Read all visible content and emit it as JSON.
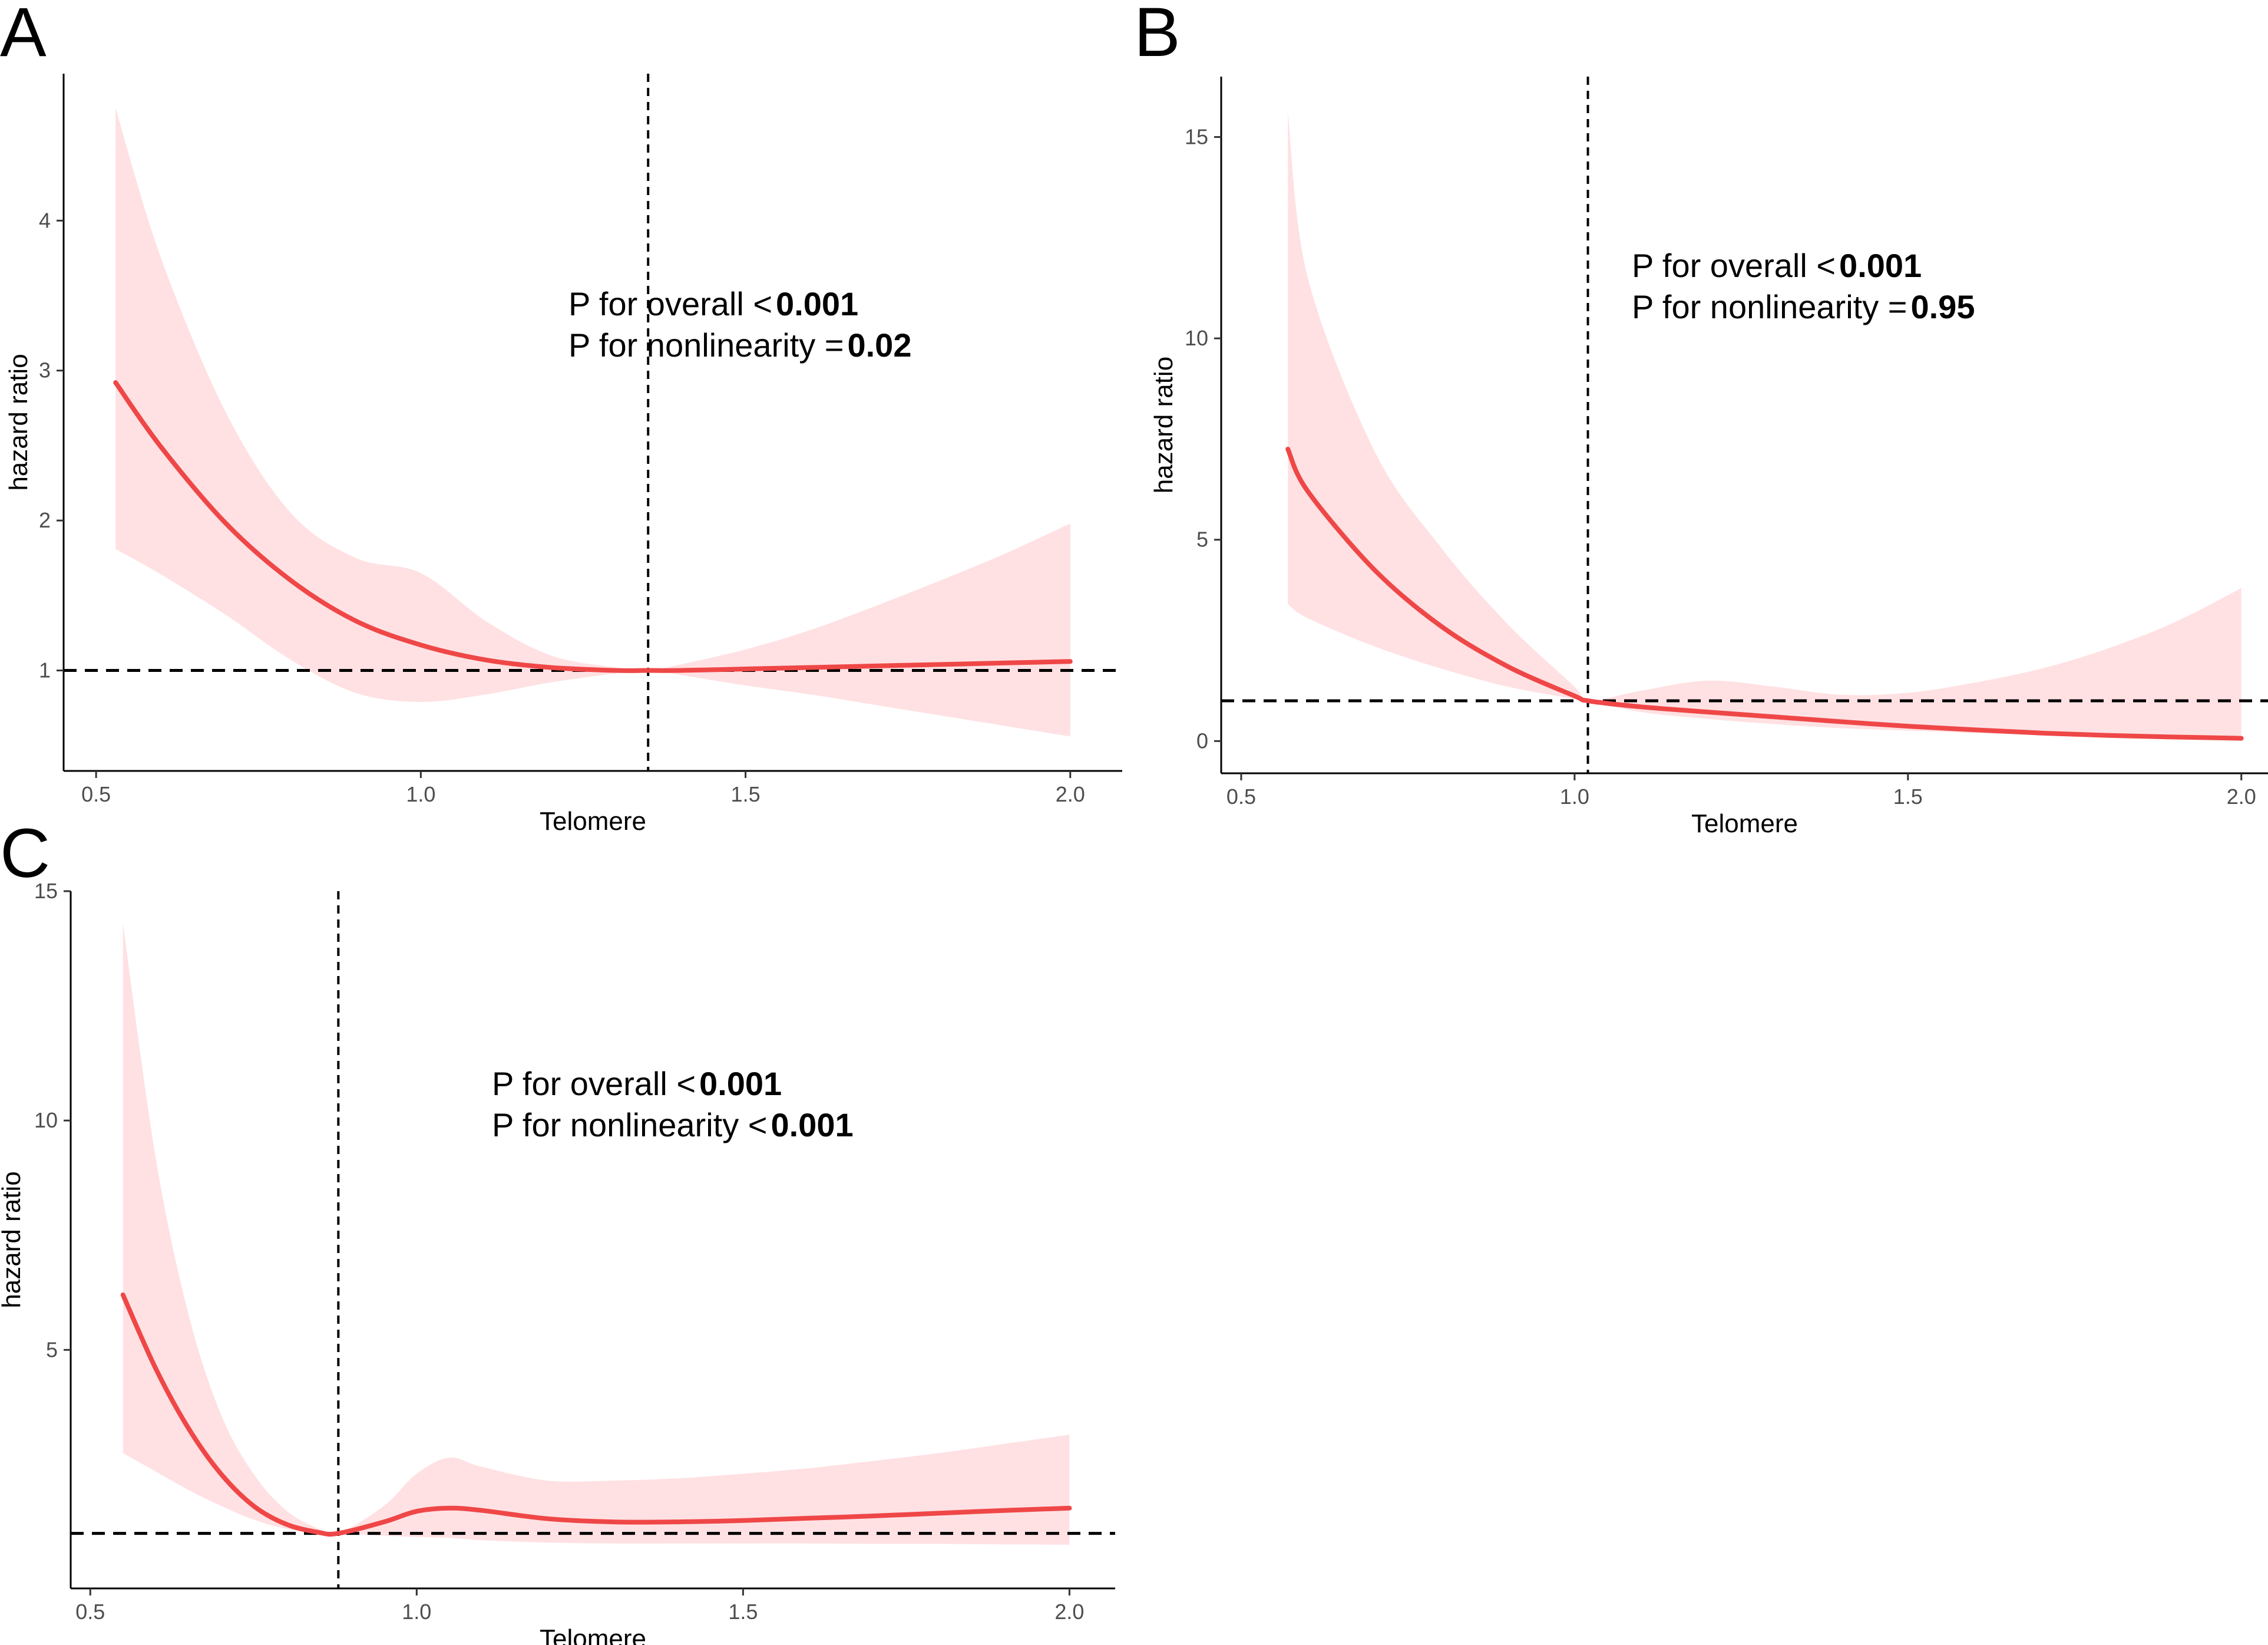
{
  "chart_data": [
    {
      "type": "line",
      "panel": "A",
      "xlabel": "Telomere",
      "ylabel": "hazard ratio",
      "xlim": [
        0.45,
        2.08
      ],
      "ylim": [
        0.33,
        4.98
      ],
      "xticks": [
        0.5,
        1.0,
        1.5,
        2.0
      ],
      "xtick_labels": [
        "0.5",
        "1.0",
        "1.5",
        "2.0"
      ],
      "yticks": [
        1,
        2,
        3,
        4
      ],
      "ytick_labels": [
        "1",
        "2",
        "3",
        "4"
      ],
      "ref_x": 1.35,
      "ref_y": 1,
      "annotations": [
        {
          "prefix": "P for overall ",
          "op": "<",
          "value": "0.001"
        },
        {
          "prefix": "P for nonlinearity ",
          "op": "=",
          "value": "0.02"
        }
      ],
      "series": [
        {
          "name": "hazard ratio",
          "x": [
            0.53,
            0.6,
            0.7,
            0.8,
            0.9,
            1.0,
            1.1,
            1.2,
            1.3,
            1.35,
            1.4,
            1.5,
            1.6,
            1.7,
            1.8,
            1.9,
            2.0
          ],
          "y": [
            2.92,
            2.49,
            1.98,
            1.6,
            1.33,
            1.17,
            1.07,
            1.02,
            1.0,
            1.0,
            1.0,
            1.01,
            1.02,
            1.03,
            1.04,
            1.05,
            1.06
          ]
        },
        {
          "name": "95% CI lower",
          "x": [
            0.53,
            0.6,
            0.7,
            0.8,
            0.9,
            1.0,
            1.1,
            1.2,
            1.3,
            1.35,
            1.4,
            1.5,
            1.6,
            1.7,
            1.8,
            1.9,
            2.0
          ],
          "y": [
            1.81,
            1.64,
            1.37,
            1.07,
            0.85,
            0.79,
            0.84,
            0.92,
            0.98,
            1.0,
            0.97,
            0.9,
            0.84,
            0.77,
            0.7,
            0.63,
            0.56
          ]
        },
        {
          "name": "95% CI upper",
          "x": [
            0.53,
            0.6,
            0.7,
            0.8,
            0.9,
            1.0,
            1.1,
            1.2,
            1.3,
            1.35,
            1.4,
            1.5,
            1.6,
            1.7,
            1.8,
            1.9,
            2.0
          ],
          "y": [
            4.75,
            3.75,
            2.72,
            2.05,
            1.75,
            1.65,
            1.33,
            1.1,
            1.02,
            1.0,
            1.04,
            1.14,
            1.27,
            1.43,
            1.6,
            1.78,
            1.98
          ]
        }
      ]
    },
    {
      "type": "line",
      "panel": "B",
      "xlabel": "Telomere",
      "ylabel": "hazard ratio",
      "xlim": [
        0.47,
        2.04
      ],
      "ylim": [
        -0.8,
        16.5
      ],
      "xticks": [
        0.5,
        1.0,
        1.5,
        2.0
      ],
      "xtick_labels": [
        "0.5",
        "1.0",
        "1.5",
        "2.0"
      ],
      "yticks": [
        0,
        5,
        10,
        15
      ],
      "ytick_labels": [
        "0",
        "5",
        "10",
        "15"
      ],
      "ref_x": 1.02,
      "ref_y": 1,
      "annotations": [
        {
          "prefix": "P for overall ",
          "op": "<",
          "value": "0.001"
        },
        {
          "prefix": "P for nonlinearity ",
          "op": "=",
          "value": "0.95"
        }
      ],
      "series": [
        {
          "name": "hazard ratio",
          "x": [
            0.57,
            0.6,
            0.7,
            0.8,
            0.9,
            1.0,
            1.02,
            1.1,
            1.2,
            1.3,
            1.4,
            1.5,
            1.6,
            1.7,
            1.8,
            1.9,
            2.0
          ],
          "y": [
            7.25,
            6.2,
            4.25,
            2.85,
            1.85,
            1.12,
            1.0,
            0.85,
            0.72,
            0.6,
            0.48,
            0.37,
            0.28,
            0.2,
            0.14,
            0.1,
            0.07
          ]
        },
        {
          "name": "95% CI lower",
          "x": [
            0.57,
            0.6,
            0.7,
            0.8,
            0.9,
            1.0,
            1.02,
            1.1,
            1.2,
            1.3,
            1.4,
            1.5,
            1.6,
            1.7,
            1.8,
            1.9,
            2.0
          ],
          "y": [
            3.4,
            3.05,
            2.35,
            1.8,
            1.35,
            1.05,
            1.0,
            0.72,
            0.55,
            0.42,
            0.32,
            0.26,
            0.2,
            0.15,
            0.1,
            0.07,
            0.04
          ]
        },
        {
          "name": "95% CI upper",
          "x": [
            0.57,
            0.6,
            0.7,
            0.8,
            0.9,
            1.0,
            1.02,
            1.1,
            1.2,
            1.3,
            1.4,
            1.5,
            1.6,
            1.7,
            1.8,
            1.9,
            2.0
          ],
          "y": [
            15.6,
            11.5,
            7.2,
            4.8,
            2.9,
            1.35,
            1.0,
            1.25,
            1.5,
            1.35,
            1.15,
            1.2,
            1.45,
            1.8,
            2.3,
            2.95,
            3.8
          ]
        }
      ]
    },
    {
      "type": "line",
      "panel": "C",
      "xlabel": "Telomere",
      "ylabel": "hazard ratio",
      "xlim": [
        0.47,
        2.07
      ],
      "ylim": [
        -0.2,
        15.0
      ],
      "xticks": [
        0.5,
        1.0,
        1.5,
        2.0
      ],
      "xtick_labels": [
        "0.5",
        "1.0",
        "1.5",
        "2.0"
      ],
      "yticks": [
        5,
        10,
        15
      ],
      "ytick_labels": [
        "5",
        "10",
        "15"
      ],
      "ref_x": 0.88,
      "ref_y": 1,
      "annotations": [
        {
          "prefix": "P for overall ",
          "op": "<",
          "value": "0.001"
        },
        {
          "prefix": "P for nonlinearity ",
          "op": "<",
          "value": "0.001"
        }
      ],
      "series": [
        {
          "name": "hazard ratio",
          "x": [
            0.55,
            0.6,
            0.65,
            0.7,
            0.75,
            0.8,
            0.85,
            0.88,
            0.95,
            1.0,
            1.05,
            1.1,
            1.2,
            1.3,
            1.4,
            1.5,
            1.6,
            1.7,
            1.8,
            1.9,
            2.0
          ],
          "y": [
            6.2,
            4.6,
            3.3,
            2.3,
            1.6,
            1.2,
            1.02,
            1.0,
            1.25,
            1.48,
            1.55,
            1.5,
            1.32,
            1.25,
            1.25,
            1.28,
            1.33,
            1.38,
            1.44,
            1.5,
            1.55
          ]
        },
        {
          "name": "95% CI lower",
          "x": [
            0.55,
            0.6,
            0.65,
            0.7,
            0.75,
            0.8,
            0.85,
            0.88,
            0.95,
            1.0,
            1.05,
            1.1,
            1.2,
            1.3,
            1.4,
            1.5,
            1.6,
            1.7,
            1.8,
            1.9,
            2.0
          ],
          "y": [
            2.75,
            2.35,
            1.95,
            1.6,
            1.3,
            1.1,
            1.0,
            1.0,
            0.95,
            0.92,
            0.9,
            0.85,
            0.8,
            0.78,
            0.78,
            0.78,
            0.78,
            0.77,
            0.77,
            0.76,
            0.75
          ]
        },
        {
          "name": "95% CI upper",
          "x": [
            0.55,
            0.6,
            0.65,
            0.7,
            0.75,
            0.8,
            0.85,
            0.88,
            0.95,
            1.0,
            1.05,
            1.1,
            1.2,
            1.3,
            1.4,
            1.5,
            1.6,
            1.7,
            1.8,
            1.9,
            2.0
          ],
          "y": [
            14.3,
            9.2,
            5.8,
            3.6,
            2.3,
            1.5,
            1.1,
            1.0,
            1.6,
            2.3,
            2.65,
            2.45,
            2.15,
            2.15,
            2.2,
            2.3,
            2.42,
            2.58,
            2.75,
            2.95,
            3.15
          ]
        }
      ]
    }
  ]
}
